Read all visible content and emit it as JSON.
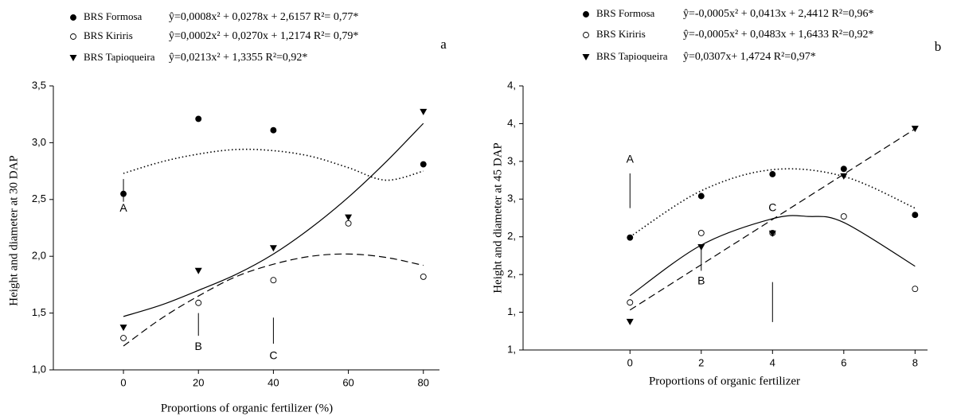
{
  "chart_data": [
    {
      "type": "scatter",
      "panel_label": "a",
      "xlabel": "Proportions of organic fertilizer (%)",
      "ylabel": "Height and diameter at 30 DAP",
      "xlim": [
        -18.7,
        84.3
      ],
      "ylim": [
        1.0,
        3.5
      ],
      "xticks": [
        0,
        20,
        40,
        60,
        80
      ],
      "yticks": [
        {
          "value": 1.0,
          "label": "1,0"
        },
        {
          "value": 1.5,
          "label": "1,5"
        },
        {
          "value": 2.0,
          "label": "2,0"
        },
        {
          "value": 2.5,
          "label": "2,5"
        },
        {
          "value": 3.0,
          "label": "3,0"
        },
        {
          "value": 3.5,
          "label": "3,5"
        }
      ],
      "annotations": [
        "A",
        "B",
        "C"
      ],
      "series": [
        {
          "name": "BRS Formosa",
          "equation": "ŷ=0,0008x² + 0,0278x + 2,6157 R²= 0,77*",
          "marker": "filled-circle",
          "color": "#000000",
          "x": [
            0,
            20,
            40,
            60,
            80
          ],
          "values": [
            2.55,
            3.21,
            3.11,
            null,
            2.81
          ],
          "fit": {
            "style": "dotted",
            "x": [
              0,
              10,
              20,
              30,
              40,
              50,
              60,
              70,
              80
            ],
            "values": [
              2.73,
              2.83,
              2.9,
              2.94,
              2.93,
              2.88,
              2.78,
              2.67,
              2.75
            ]
          }
        },
        {
          "name": "BRS Kiriris",
          "equation": "ŷ=0,0002x² + 0,0270x + 1,2174 R²= 0,79*",
          "marker": "open-circle",
          "color": "#000000",
          "x": [
            0,
            20,
            40,
            60,
            80
          ],
          "values": [
            1.28,
            1.59,
            1.79,
            2.29,
            1.82
          ],
          "fit": {
            "style": "dashed",
            "x": [
              0,
              10,
              20,
              30,
              40,
              50,
              60,
              70,
              80
            ],
            "values": [
              1.21,
              1.45,
              1.65,
              1.82,
              1.93,
              2.0,
              2.02,
              1.99,
              1.92
            ]
          }
        },
        {
          "name": "BRS Tapioqueira",
          "equation": "ŷ=0,0213x² + 1,3355 R²=0,92*",
          "marker": "triangle-down",
          "color": "#000000",
          "x": [
            0,
            20,
            40,
            60,
            80
          ],
          "values": [
            1.37,
            1.87,
            2.07,
            2.34,
            3.27
          ],
          "fit": {
            "style": "solid",
            "x": [
              0,
              10,
              20,
              30,
              40,
              50,
              60,
              70,
              80
            ],
            "values": [
              1.47,
              1.57,
              1.7,
              1.84,
              2.02,
              2.25,
              2.52,
              2.83,
              3.17
            ]
          }
        }
      ]
    },
    {
      "type": "scatter",
      "panel_label": "b",
      "xlabel": "Proportions of organic fertilizer",
      "ylabel": "Height and diameter at 45 DAP",
      "xlim": [
        -3.0,
        8.35
      ],
      "ylim": [
        1.0,
        4.5
      ],
      "xticks": [
        0,
        2,
        4,
        6,
        8
      ],
      "yticks": [
        {
          "value": 1.0,
          "label": "1,"
        },
        {
          "value": 1.5,
          "label": "1,"
        },
        {
          "value": 2.0,
          "label": "2,"
        },
        {
          "value": 2.5,
          "label": "2,"
        },
        {
          "value": 3.0,
          "label": "3,"
        },
        {
          "value": 3.5,
          "label": "3,"
        },
        {
          "value": 4.0,
          "label": "4,"
        },
        {
          "value": 4.5,
          "label": "4,"
        }
      ],
      "annotations": [
        "A",
        "B",
        "C"
      ],
      "series": [
        {
          "name": "BRS Formosa",
          "equation": "ŷ=-0,0005x² + 0,0413x + 2,4412 R²=0,96*",
          "marker": "filled-circle",
          "color": "#000000",
          "x": [
            0,
            2,
            4,
            6,
            8
          ],
          "values": [
            2.49,
            3.04,
            3.33,
            3.4,
            2.79
          ],
          "fit": {
            "style": "dotted",
            "x": [
              0,
              2,
              4,
              6,
              8
            ],
            "values": [
              2.5,
              3.11,
              3.39,
              3.3,
              2.88
            ]
          }
        },
        {
          "name": "BRS Kiriris",
          "equation": "ŷ=-0,0005x² + 0,0483x + 1,6433 R²=0,92*",
          "marker": "open-circle",
          "color": "#000000",
          "x": [
            0,
            2,
            4,
            6,
            8
          ],
          "values": [
            1.63,
            2.55,
            2.55,
            2.77,
            1.81
          ],
          "fit": {
            "style": "solid",
            "x": [
              0,
              2,
              4,
              5,
              6,
              8
            ],
            "values": [
              1.72,
              2.39,
              2.74,
              2.77,
              2.69,
              2.11
            ]
          }
        },
        {
          "name": "BRS Tapioqueira",
          "equation": "ŷ=0,0307x+ 1,4724 R²=0,97*",
          "marker": "triangle-down",
          "color": "#000000",
          "x": [
            0,
            2,
            4,
            6,
            8
          ],
          "values": [
            1.37,
            2.36,
            2.54,
            3.3,
            3.93
          ],
          "fit": {
            "style": "dashed",
            "x": [
              0,
              8
            ],
            "values": [
              1.53,
              3.93
            ]
          }
        }
      ]
    }
  ]
}
